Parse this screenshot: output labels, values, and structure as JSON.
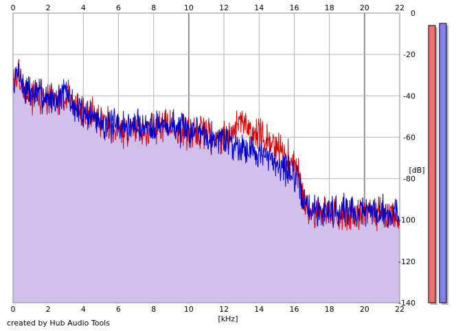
{
  "chart_data": {
    "type": "area",
    "xlabel": "[kHz]",
    "ylabel": "[dB]",
    "xlim": [
      0,
      22
    ],
    "ylim": [
      -140,
      0
    ],
    "x_ticks": [
      0,
      2,
      4,
      6,
      8,
      10,
      12,
      14,
      16,
      18,
      20,
      22
    ],
    "y_ticks": [
      0,
      -20,
      -40,
      -60,
      -80,
      -100,
      -120,
      -140
    ],
    "grid": true,
    "series": [
      {
        "channel": "left",
        "color": "#e00000",
        "x": [
          0,
          0.3,
          0.6,
          1,
          1.5,
          2,
          2.5,
          3,
          3.5,
          4,
          4.5,
          5,
          5.5,
          6,
          6.5,
          7,
          7.5,
          8,
          8.5,
          9,
          9.5,
          10,
          10.5,
          11,
          11.5,
          12,
          12.5,
          13,
          13.5,
          14,
          14.5,
          15,
          15.5,
          16,
          16.3,
          16.6,
          17,
          17.5,
          18,
          18.5,
          19,
          19.5,
          20,
          20.5,
          21,
          21.5,
          22
        ],
        "values": [
          -34,
          -29,
          -38,
          -41,
          -40,
          -42,
          -42,
          -40,
          -44,
          -47,
          -49,
          -51,
          -54,
          -57,
          -56,
          -55,
          -56,
          -56,
          -53,
          -55,
          -57,
          -58,
          -57,
          -58,
          -60,
          -60,
          -57,
          -52,
          -56,
          -59,
          -62,
          -64,
          -68,
          -73,
          -80,
          -92,
          -96,
          -96,
          -96,
          -97,
          -96,
          -97,
          -97,
          -97,
          -97,
          -98,
          -98
        ]
      },
      {
        "channel": "right",
        "color": "#0000cc",
        "x": [
          0,
          0.3,
          0.6,
          1,
          1.5,
          2,
          2.5,
          3,
          3.5,
          4,
          4.5,
          5,
          5.5,
          6,
          6.5,
          7,
          7.5,
          8,
          8.5,
          9,
          9.5,
          10,
          10.5,
          11,
          11.5,
          12,
          12.5,
          13,
          13.5,
          14,
          14.5,
          15,
          15.5,
          16,
          16.3,
          16.6,
          17,
          17.5,
          18,
          18.5,
          19,
          19.5,
          20,
          20.5,
          21,
          21.5,
          22
        ],
        "values": [
          -36,
          -27,
          -36,
          -38,
          -39,
          -41,
          -42,
          -38,
          -46,
          -48,
          -50,
          -52,
          -55,
          -54,
          -55,
          -54,
          -55,
          -53,
          -55,
          -54,
          -56,
          -57,
          -55,
          -58,
          -61,
          -60,
          -63,
          -64,
          -66,
          -67,
          -71,
          -72,
          -75,
          -79,
          -84,
          -92,
          -95,
          -95,
          -95,
          -96,
          -94,
          -96,
          -95,
          -96,
          -95,
          -97,
          -96
        ]
      }
    ],
    "level_meters": [
      {
        "channel": "left",
        "color": "#f07070",
        "level_db": -6
      },
      {
        "channel": "right",
        "color": "#8080f0",
        "level_db": -5
      }
    ]
  },
  "footer": {
    "credit": "created by Hub Audio Tools"
  },
  "colors": {
    "fill": "#c0c0ff",
    "grid": "#b4b4b4",
    "grid_major": "#909090"
  }
}
